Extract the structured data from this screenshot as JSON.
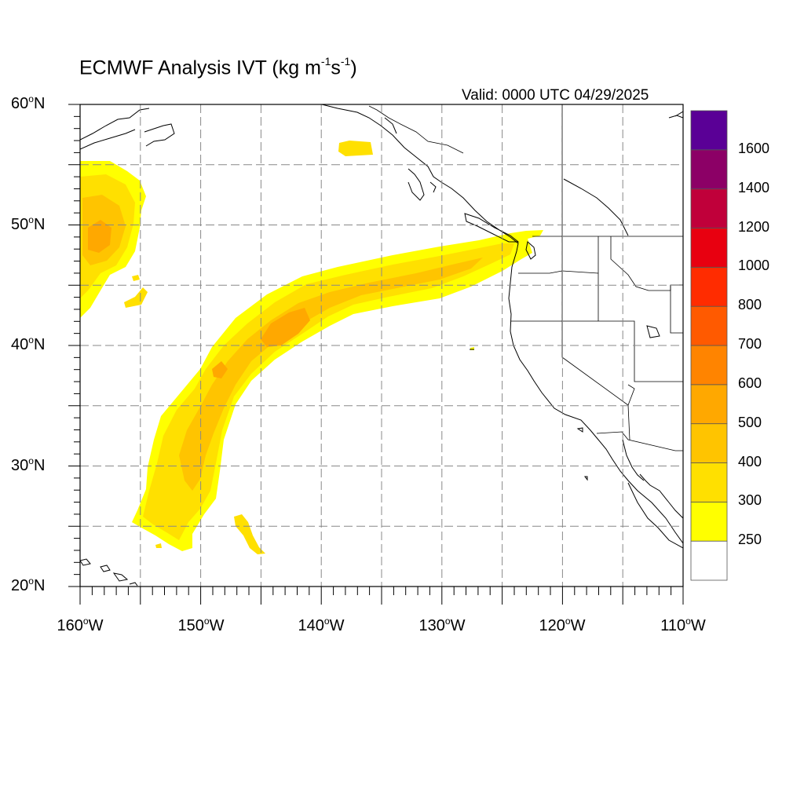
{
  "title": {
    "main": "ECMWF Analysis IVT (kg m",
    "sup1": "-1",
    "mid": "s",
    "sup2": "-1",
    "end": ")"
  },
  "valid_text": "Valid: 0000 UTC 04/29/2025",
  "map": {
    "lon_range": [
      -160,
      -110
    ],
    "lat_range": [
      20,
      60
    ],
    "gridline_style": "dashed",
    "lat_labels": [
      {
        "value": "60",
        "suffix": "N"
      },
      {
        "value": "50",
        "suffix": "N"
      },
      {
        "value": "40",
        "suffix": "N"
      },
      {
        "value": "30",
        "suffix": "N"
      },
      {
        "value": "20",
        "suffix": "N"
      }
    ],
    "lon_labels": [
      {
        "value": "160",
        "suffix": "W"
      },
      {
        "value": "150",
        "suffix": "W"
      },
      {
        "value": "140",
        "suffix": "W"
      },
      {
        "value": "130",
        "suffix": "W"
      },
      {
        "value": "120",
        "suffix": "W"
      },
      {
        "value": "110",
        "suffix": "W"
      }
    ]
  },
  "colorbar": {
    "levels": [
      "250",
      "300",
      "400",
      "500",
      "600",
      "700",
      "800",
      "1000",
      "1200",
      "1400",
      "1600"
    ],
    "colors": [
      "#ffffff",
      "#ffff00",
      "#ffe000",
      "#ffc400",
      "#ffa800",
      "#ff8400",
      "#ff5a00",
      "#ff2c00",
      "#e80010",
      "#c0003a",
      "#8c0066",
      "#5a0096"
    ]
  }
}
